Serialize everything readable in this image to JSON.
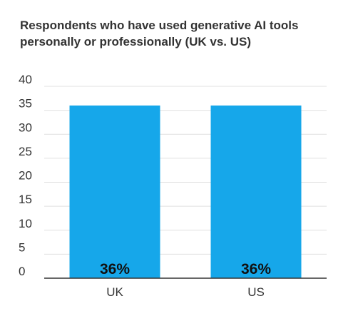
{
  "chart_data": {
    "type": "bar",
    "title": "Respondents who have used generative AI tools personally or professionally (UK vs. US)",
    "categories": [
      "UK",
      "US"
    ],
    "values": [
      36,
      36
    ],
    "data_labels": [
      "36%",
      "36%"
    ],
    "xlabel": "",
    "ylabel": "",
    "ylim": [
      0,
      40
    ],
    "yticks": [
      0,
      5,
      10,
      15,
      20,
      25,
      30,
      35,
      40
    ],
    "bar_color": "#16a7ea",
    "grid": true,
    "legend": "none"
  }
}
